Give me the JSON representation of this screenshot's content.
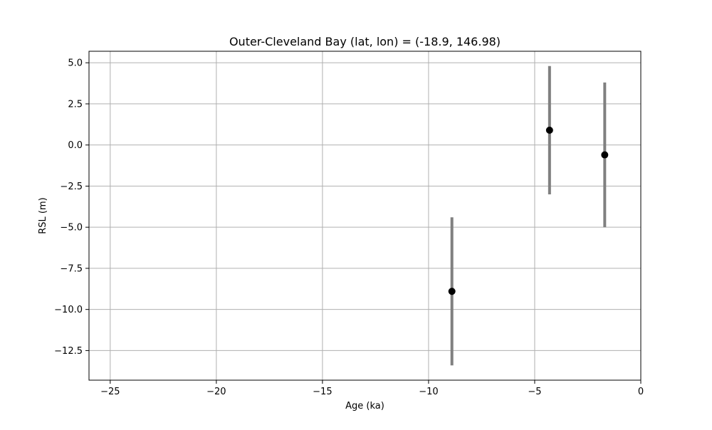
{
  "chart_data": {
    "type": "scatter",
    "title": "Outer-Cleveland Bay (lat, lon) = (-18.9, 146.98)",
    "xlabel": "Age (ka)",
    "ylabel": "RSL (m)",
    "xlim": [
      -26,
      0
    ],
    "ylim": [
      -14.3,
      5.7
    ],
    "x_ticks": [
      -25,
      -20,
      -15,
      -10,
      -5,
      0
    ],
    "y_ticks": [
      5.0,
      2.5,
      0.0,
      -2.5,
      -5.0,
      -7.5,
      -10.0,
      -12.5
    ],
    "x_tick_labels": [
      "−25",
      "−20",
      "−15",
      "−10",
      "−5",
      "0"
    ],
    "y_tick_labels": [
      "5.0",
      "2.5",
      "0.0",
      "−2.5",
      "−5.0",
      "−7.5",
      "−10.0",
      "−12.5"
    ],
    "grid": true,
    "series": [
      {
        "points": [
          {
            "x": -8.9,
            "y": -8.9,
            "y_low": -13.4,
            "y_high": -4.4
          },
          {
            "x": -4.3,
            "y": 0.9,
            "y_low": -3.0,
            "y_high": 4.8
          },
          {
            "x": -1.7,
            "y": -0.6,
            "y_low": -5.0,
            "y_high": 3.8
          }
        ],
        "marker_color": "#000000",
        "errorbar_color": "#808080"
      }
    ]
  }
}
